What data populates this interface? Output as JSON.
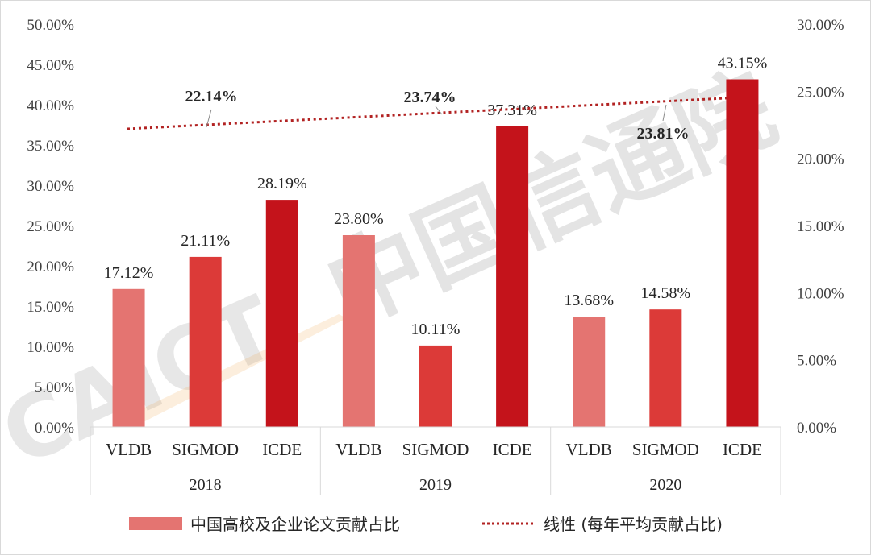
{
  "chart_data": {
    "type": "bar",
    "groups": [
      {
        "label": "2018",
        "categories": [
          "VLDB",
          "SIGMOD",
          "ICDE"
        ],
        "values": [
          17.12,
          21.11,
          28.19
        ],
        "value_labels": [
          "17.12%",
          "21.11%",
          "28.19%"
        ]
      },
      {
        "label": "2019",
        "categories": [
          "VLDB",
          "SIGMOD",
          "ICDE"
        ],
        "values": [
          23.8,
          10.11,
          37.31
        ],
        "value_labels": [
          "23.80%",
          "10.11%",
          "37.31%"
        ]
      },
      {
        "label": "2020",
        "categories": [
          "VLDB",
          "SIGMOD",
          "ICDE"
        ],
        "values": [
          13.68,
          14.58,
          43.15
        ],
        "value_labels": [
          "13.68%",
          "14.58%",
          "43.15%"
        ]
      }
    ],
    "bar_colors": [
      "#e47471",
      "#dc3a38",
      "#c4131b"
    ],
    "y_left": {
      "range": [
        0,
        50
      ],
      "ticks": [
        "0.00%",
        "5.00%",
        "10.00%",
        "15.00%",
        "20.00%",
        "25.00%",
        "30.00%",
        "35.00%",
        "40.00%",
        "45.00%",
        "50.00%"
      ]
    },
    "y_right": {
      "range": [
        0,
        30
      ],
      "ticks": [
        "0.00%",
        "5.00%",
        "10.00%",
        "15.00%",
        "20.00%",
        "25.00%",
        "30.00%"
      ]
    },
    "averages": {
      "values": [
        22.14,
        23.74,
        23.81
      ],
      "labels": [
        "22.14%",
        "23.74%",
        "23.81%"
      ]
    },
    "trendline": {
      "axis": "right",
      "start": 22.2,
      "end": 24.5,
      "color": "#b22222",
      "style": "dotted"
    },
    "legend": {
      "placement": "bottom",
      "items": [
        {
          "label": "中国高校及企业论文贡献占比",
          "color": "#e47471",
          "kind": "swatch"
        },
        {
          "label": "线性 (每年平均贡献占比)",
          "color": "#b22222",
          "kind": "dotted-line"
        }
      ]
    },
    "grid": false
  },
  "watermark": {
    "cn": "中国信通院",
    "en": "CAICT"
  }
}
